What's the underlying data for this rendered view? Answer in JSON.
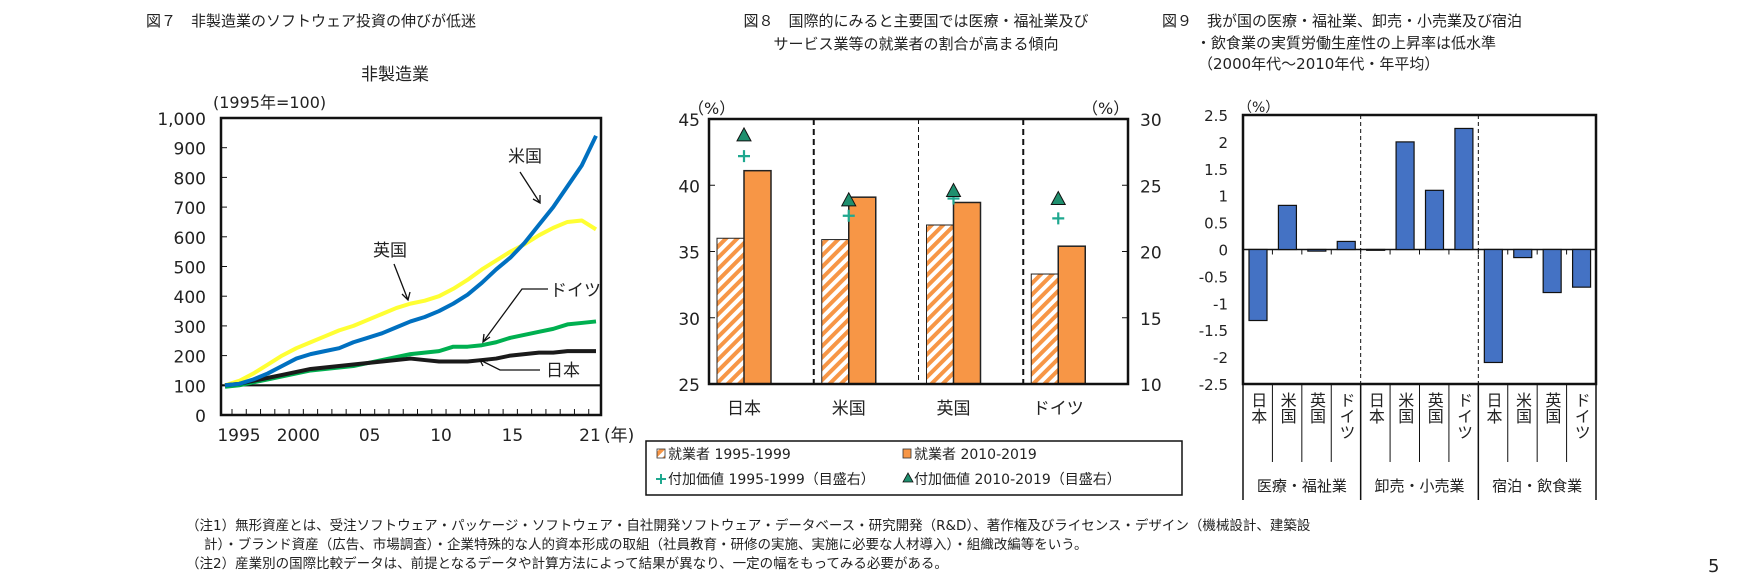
{
  "chart_data": [
    {
      "type": "line",
      "fig_title": "図７　非製造業のソフトウェア投資の伸びが低迷",
      "title": "非製造業",
      "ylabel": "(1995年=100)",
      "xlabel": "(年)",
      "ylim": [
        0,
        1000
      ],
      "yticks": [
        "0",
        "100",
        "200",
        "300",
        "400",
        "500",
        "600",
        "700",
        "800",
        "900",
        "1,000"
      ],
      "xticks": [
        "1995",
        "2000",
        "05",
        "10",
        "15",
        "21"
      ],
      "x": [
        1995,
        1996,
        1997,
        1998,
        1999,
        2000,
        2001,
        2002,
        2003,
        2004,
        2005,
        2006,
        2007,
        2008,
        2009,
        2010,
        2011,
        2012,
        2013,
        2014,
        2015,
        2016,
        2017,
        2018,
        2019,
        2020,
        2021
      ],
      "series": [
        {
          "name": "米国",
          "color": "#0070C0",
          "values": [
            100,
            105,
            120,
            140,
            165,
            190,
            205,
            215,
            225,
            245,
            260,
            275,
            295,
            315,
            330,
            350,
            375,
            405,
            445,
            490,
            530,
            580,
            640,
            700,
            770,
            840,
            940
          ]
        },
        {
          "name": "英国",
          "color": "#FFFF33",
          "values": [
            100,
            115,
            140,
            170,
            200,
            225,
            245,
            265,
            285,
            300,
            320,
            340,
            360,
            375,
            385,
            400,
            425,
            455,
            490,
            520,
            550,
            575,
            605,
            630,
            650,
            655,
            625
          ]
        },
        {
          "name": "ドイツ",
          "color": "#00B050",
          "values": [
            95,
            100,
            110,
            120,
            130,
            140,
            150,
            155,
            160,
            165,
            175,
            185,
            195,
            205,
            210,
            215,
            230,
            230,
            235,
            245,
            260,
            270,
            280,
            290,
            305,
            310,
            315
          ]
        },
        {
          "name": "日本",
          "color": "#1a1a1a",
          "values": [
            100,
            105,
            115,
            125,
            135,
            145,
            155,
            160,
            165,
            170,
            175,
            180,
            185,
            190,
            185,
            180,
            180,
            180,
            185,
            190,
            200,
            205,
            210,
            210,
            215,
            215,
            215
          ]
        }
      ],
      "reference_line": 100
    },
    {
      "type": "bar",
      "fig_title_line1": "図８　国際的にみると主要国では医療・福祉業及び",
      "fig_title_line2": "サービス業等の就業者の割合が高まる傾向",
      "ylabel_left": "（%）",
      "ylabel_right": "（%）",
      "ylim_left": [
        25,
        45
      ],
      "ylim_right": [
        10,
        30
      ],
      "yticks_left": [
        "25",
        "30",
        "35",
        "40",
        "45"
      ],
      "yticks_right": [
        "10",
        "15",
        "20",
        "25",
        "30"
      ],
      "categories": [
        "日本",
        "米国",
        "英国",
        "ドイツ"
      ],
      "series": [
        {
          "name": "就業者 1995-1999",
          "kind": "bar-hatched",
          "axis": "left",
          "color": "#F79646",
          "values": [
            36.0,
            35.9,
            37.0,
            33.3
          ]
        },
        {
          "name": "就業者 2010-2019",
          "kind": "bar",
          "axis": "left",
          "color": "#F79646",
          "values": [
            41.1,
            39.1,
            38.7,
            35.4
          ]
        },
        {
          "name": "付加価値 1995-1999（目盛右）",
          "kind": "plus",
          "axis": "right",
          "color": "#1FA88F",
          "values": [
            27.2,
            22.7,
            24.0,
            22.5
          ]
        },
        {
          "name": "付加価値 2010-2019（目盛右）",
          "kind": "triangle",
          "axis": "right",
          "color": "#1F8F6E",
          "values": [
            28.8,
            23.9,
            24.6,
            24.0
          ]
        }
      ]
    },
    {
      "type": "bar",
      "fig_title_line1": "図９　我が国の医療・福祉業、卸売・小売業及び宿泊",
      "fig_title_line2": "・飲食業の実質労働生産性の上昇率は低水準",
      "fig_title_line3": "（2000年代～2010年代・年平均）",
      "ylabel": "（%）",
      "ylim": [
        -2.5,
        2.5
      ],
      "yticks": [
        "-2.5",
        "-2",
        "-1.5",
        "-1",
        "-0.5",
        "0",
        "0.5",
        "1",
        "1.5",
        "2",
        "2.5"
      ],
      "color": "#4472C4",
      "groups": [
        {
          "name": "医療・福祉業",
          "categories": [
            "日本",
            "米国",
            "英国",
            "ドイツ"
          ],
          "values": [
            -1.32,
            0.82,
            -0.03,
            0.15
          ]
        },
        {
          "name": "卸売・小売業",
          "categories": [
            "日本",
            "米国",
            "英国",
            "ドイツ"
          ],
          "values": [
            0.0,
            2.0,
            1.1,
            2.25
          ]
        },
        {
          "name": "宿泊・飲食業",
          "categories": [
            "日本",
            "米国",
            "英国",
            "ドイツ"
          ],
          "values": [
            -2.1,
            -0.15,
            -0.8,
            -0.7
          ]
        }
      ]
    }
  ],
  "notes": [
    "（注1）無形資産とは、受注ソフトウェア・パッケージ・ソフトウェア・自社開発ソフトウェア・データベース・研究開発（R&D）、著作権及びライセンス・デザイン（機械設計、建築設",
    "計）・ブランド資産（広告、市場調査）・企業特殊的な人的資本形成の取組（社員教育・研修の実施、実施に必要な人材導入）・組織改編等をいう。",
    "（注2）産業別の国際比較データは、前提となるデータや計算方法によって結果が異なり、一定の幅をもってみる必要がある。"
  ],
  "page_number": "5"
}
